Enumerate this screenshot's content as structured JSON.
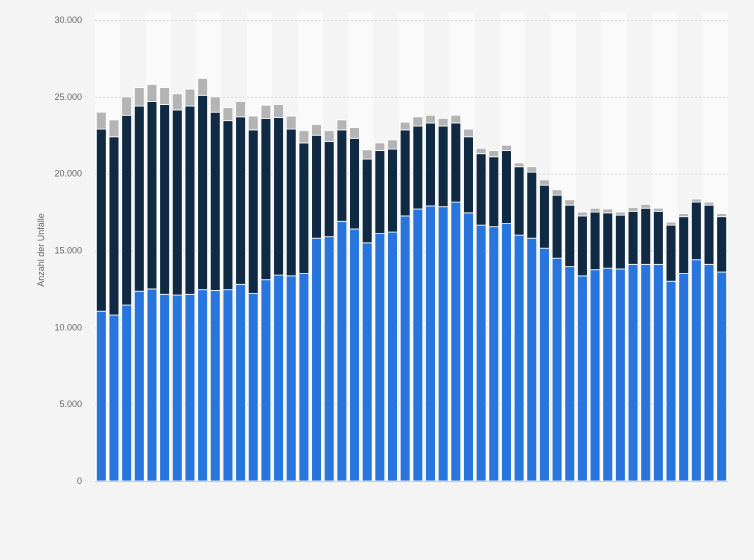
{
  "chart_data": {
    "type": "bar",
    "stacked": true,
    "title": "",
    "xlabel": "",
    "ylabel": "Anzahl der Unfälle",
    "ylim": [
      0,
      30000
    ],
    "yticks": [
      0,
      5000,
      10000,
      15000,
      20000,
      25000,
      30000
    ],
    "ytick_labels": [
      "0",
      "5.000",
      "10.000",
      "15.000",
      "20.000",
      "25.000",
      "30.000"
    ],
    "grid": true,
    "legend": "none",
    "series": [
      {
        "color": "#2876dd",
        "values": [
          11050,
          10800,
          11450,
          12350,
          12500,
          12150,
          12100,
          12150,
          12450,
          12400,
          12450,
          12800,
          12200,
          13100,
          13400,
          13350,
          13500,
          15800,
          15900,
          16900,
          16400,
          15500,
          16100,
          16200,
          17250,
          17700,
          17900,
          17850,
          18150,
          17450,
          16650,
          16550,
          16750,
          16000,
          15800,
          15150,
          14500,
          13950,
          13350,
          13750,
          13850,
          13800,
          14100,
          14100,
          14100,
          13000,
          13500,
          14400,
          14100,
          13600
        ]
      },
      {
        "color": "#0f2a42",
        "values": [
          11850,
          11600,
          12350,
          12050,
          12200,
          12350,
          12050,
          12250,
          12650,
          11600,
          11000,
          10900,
          10650,
          10500,
          10250,
          9550,
          8500,
          6700,
          6200,
          5950,
          5900,
          5450,
          5400,
          5400,
          5600,
          5400,
          5400,
          5250,
          5150,
          4950,
          4650,
          4550,
          4750,
          4450,
          4300,
          4100,
          4100,
          4000,
          3900,
          3750,
          3600,
          3500,
          3450,
          3650,
          3450,
          3650,
          3700,
          3750,
          3850,
          3600
        ]
      },
      {
        "color": "#b4b4b4",
        "values": [
          1100,
          1100,
          1200,
          1200,
          1100,
          1100,
          1050,
          1100,
          1100,
          1000,
          850,
          1000,
          900,
          850,
          850,
          850,
          800,
          700,
          700,
          650,
          700,
          600,
          500,
          600,
          500,
          600,
          500,
          500,
          500,
          500,
          350,
          400,
          350,
          250,
          350,
          350,
          350,
          350,
          250,
          250,
          250,
          200,
          250,
          250,
          200,
          200,
          200,
          200,
          200,
          200
        ]
      }
    ]
  }
}
